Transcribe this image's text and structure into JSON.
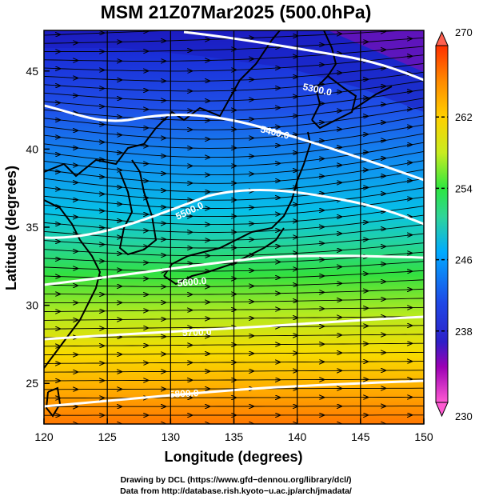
{
  "title": "MSM 21Z07Mar2025 (500.0hPa)",
  "xaxis": {
    "label": "Longitude (degrees)",
    "ticks": [
      "120",
      "125",
      "130",
      "135",
      "140",
      "145",
      "150"
    ],
    "range": [
      120,
      150
    ]
  },
  "yaxis": {
    "label": "Latitude  (degrees)",
    "ticks": [
      "25",
      "30",
      "35",
      "40",
      "45"
    ],
    "range": [
      22.4,
      47.6
    ]
  },
  "colorbar": {
    "ticks": [
      "230",
      "238",
      "246",
      "254",
      "262",
      "270"
    ],
    "range": [
      230,
      270
    ],
    "colors": [
      "#ff5ad2",
      "#9b00b4",
      "#2e20c8",
      "#1f49e6",
      "#00aaff",
      "#2fd49a",
      "#2ee640",
      "#c8ec20",
      "#ffd000",
      "#ff8a00",
      "#ff3000"
    ]
  },
  "contours": {
    "labels": [
      "5300.0",
      "5400.0",
      "5500.0",
      "5600.0",
      "5700.0",
      "5800.0"
    ]
  },
  "footer": {
    "line1": "Drawing by DCL (https://www.gfd−dennou.org/library/dcl/)",
    "line2": "Data from http://database.rish.kyoto−u.ac.jp/arch/jmadata/"
  }
}
